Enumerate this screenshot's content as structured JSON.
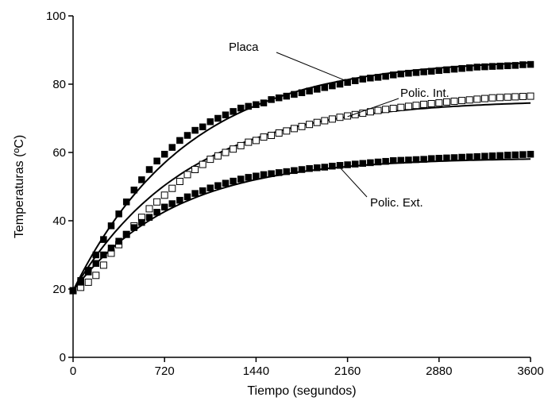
{
  "chart_data": {
    "type": "scatter",
    "title": "",
    "xlabel": "Tiempo (segundos)",
    "ylabel": "Temperaturas (ºC)",
    "xlim": [
      0,
      3600
    ],
    "ylim": [
      0,
      100
    ],
    "xticks": [
      0,
      720,
      1440,
      2160,
      2880,
      3600
    ],
    "yticks": [
      0,
      20,
      40,
      60,
      80,
      100
    ],
    "grid": false,
    "legend": "none",
    "series": [
      {
        "name": "Placa",
        "marker": "filled-square",
        "color": "#000000",
        "x": [
          0,
          60,
          120,
          180,
          240,
          300,
          360,
          420,
          480,
          540,
          600,
          660,
          720,
          780,
          840,
          900,
          960,
          1020,
          1080,
          1140,
          1200,
          1260,
          1320,
          1380,
          1440,
          1500,
          1560,
          1620,
          1680,
          1740,
          1800,
          1860,
          1920,
          1980,
          2040,
          2100,
          2160,
          2220,
          2280,
          2340,
          2400,
          2460,
          2520,
          2580,
          2640,
          2700,
          2760,
          2820,
          2880,
          2940,
          3000,
          3060,
          3120,
          3180,
          3240,
          3300,
          3360,
          3420,
          3480,
          3540,
          3600
        ],
        "values": [
          19.5,
          22.5,
          25.5,
          30,
          34.5,
          38.5,
          42,
          45.5,
          49,
          52,
          55,
          57.5,
          59.5,
          61.5,
          63.5,
          65,
          66.5,
          67.5,
          69,
          70,
          71,
          72,
          73,
          73.5,
          74,
          74.5,
          75.5,
          76,
          76.5,
          77,
          77.5,
          78,
          78.5,
          79,
          79.5,
          80,
          80.5,
          81,
          81.5,
          81.8,
          82,
          82.3,
          82.7,
          83,
          83.2,
          83.4,
          83.6,
          83.8,
          84,
          84.2,
          84.4,
          84.6,
          84.8,
          85,
          85.1,
          85.2,
          85.3,
          85.4,
          85.5,
          85.7,
          85.8
        ]
      },
      {
        "name": "Polic. Int.",
        "marker": "open-square",
        "color": "#000000",
        "x": [
          0,
          60,
          120,
          180,
          240,
          300,
          360,
          420,
          480,
          540,
          600,
          660,
          720,
          780,
          840,
          900,
          960,
          1020,
          1080,
          1140,
          1200,
          1260,
          1320,
          1380,
          1440,
          1500,
          1560,
          1620,
          1680,
          1740,
          1800,
          1860,
          1920,
          1980,
          2040,
          2100,
          2160,
          2220,
          2280,
          2340,
          2400,
          2460,
          2520,
          2580,
          2640,
          2700,
          2760,
          2820,
          2880,
          2940,
          3000,
          3060,
          3120,
          3180,
          3240,
          3300,
          3360,
          3420,
          3480,
          3540,
          3600
        ],
        "values": [
          19.5,
          20.5,
          22,
          24,
          27,
          30.5,
          33,
          36,
          38.5,
          41,
          43.5,
          45.5,
          47.5,
          49.5,
          51.5,
          53.5,
          55,
          56.5,
          58,
          59,
          60,
          61,
          62,
          63,
          63.5,
          64.5,
          65,
          65.7,
          66.3,
          67,
          67.6,
          68.2,
          68.8,
          69.3,
          69.8,
          70.3,
          70.7,
          71.1,
          71.5,
          71.9,
          72.3,
          72.6,
          72.9,
          73.2,
          73.5,
          73.8,
          74.1,
          74.3,
          74.5,
          74.8,
          75,
          75.2,
          75.4,
          75.6,
          75.8,
          76,
          76.1,
          76.2,
          76.3,
          76.4,
          76.5
        ]
      },
      {
        "name": "Polic. Ext.",
        "marker": "filled-square",
        "color": "#000000",
        "x": [
          0,
          60,
          120,
          180,
          240,
          300,
          360,
          420,
          480,
          540,
          600,
          660,
          720,
          780,
          840,
          900,
          960,
          1020,
          1080,
          1140,
          1200,
          1260,
          1320,
          1380,
          1440,
          1500,
          1560,
          1620,
          1680,
          1740,
          1800,
          1860,
          1920,
          1980,
          2040,
          2100,
          2160,
          2220,
          2280,
          2340,
          2400,
          2460,
          2520,
          2580,
          2640,
          2700,
          2760,
          2820,
          2880,
          2940,
          3000,
          3060,
          3120,
          3180,
          3240,
          3300,
          3360,
          3420,
          3480,
          3540,
          3600
        ],
        "values": [
          19.5,
          22,
          25,
          27.5,
          30,
          32,
          34,
          36,
          38,
          39.5,
          41,
          42.5,
          44,
          45,
          46,
          47,
          48,
          48.8,
          49.6,
          50.3,
          51,
          51.6,
          52.2,
          52.7,
          53.1,
          53.5,
          53.8,
          54.1,
          54.4,
          54.7,
          55,
          55.3,
          55.5,
          55.7,
          56,
          56.2,
          56.4,
          56.6,
          56.8,
          57,
          57.2,
          57.4,
          57.6,
          57.7,
          57.8,
          57.9,
          58,
          58.2,
          58.3,
          58.4,
          58.5,
          58.6,
          58.7,
          58.8,
          58.9,
          59,
          59.1,
          59.2,
          59.3,
          59.4,
          59.5
        ]
      }
    ],
    "fit_curves": [
      {
        "series": "Placa",
        "start": 19.5,
        "end": 87.5,
        "tau": 900
      },
      {
        "series": "Polic. Int.",
        "start": 19.5,
        "end": 75.5,
        "tau": 900
      },
      {
        "series": "Polic. Ext.",
        "start": 19.5,
        "end": 58.5,
        "tau": 800
      }
    ],
    "annotations": [
      {
        "text": "Placa",
        "series": "Placa",
        "x": 2180,
        "y": 80.5
      },
      {
        "text": "Polic. Int.",
        "series": "Polic. Int.",
        "x": 2160,
        "y": 70.5
      },
      {
        "text": "Polic. Ext.",
        "series": "Polic. Ext.",
        "x": 2090,
        "y": 56
      }
    ]
  }
}
